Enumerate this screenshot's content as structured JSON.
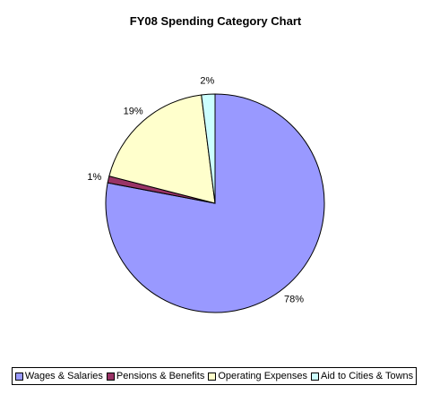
{
  "chart_data": {
    "type": "pie",
    "title": "FY08 Spending Category Chart",
    "categories": [
      "Wages & Salaries",
      "Pensions & Benefits",
      "Operating Expenses",
      "Aid to Cities & Towns"
    ],
    "values": [
      78,
      1,
      19,
      2
    ],
    "labels": [
      "78%",
      "1%",
      "19%",
      "2%"
    ],
    "colors": [
      "#9999ff",
      "#993366",
      "#ffffcc",
      "#ccffff"
    ],
    "legend_position": "bottom"
  }
}
